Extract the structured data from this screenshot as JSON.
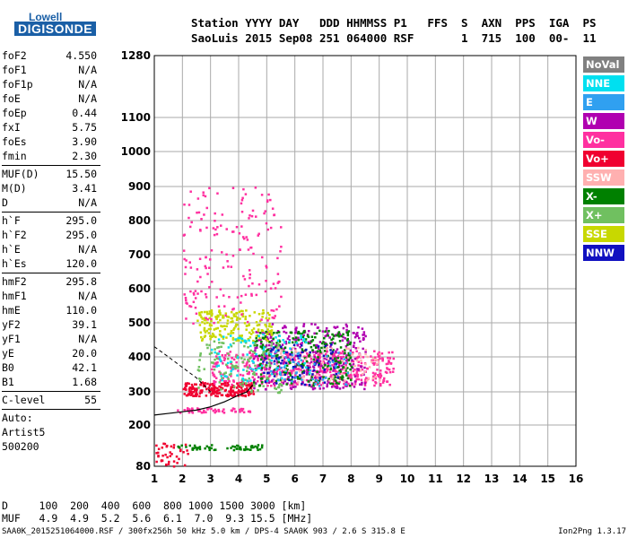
{
  "logo": {
    "line1": "Lowell",
    "line2": "DIGISONDE"
  },
  "header": {
    "row1": "Station YYYY DAY   DDD HHMMSS P1   FFS  S  AXN  PPS  IGA  PS",
    "row2": "SaoLuis 2015 Sep08 251 064000 RSF       1  715  100  00-  11"
  },
  "params": {
    "group1": [
      {
        "k": "foF2",
        "v": "4.550"
      },
      {
        "k": "foF1",
        "v": "N/A"
      },
      {
        "k": "foF1p",
        "v": "N/A"
      },
      {
        "k": "foE",
        "v": "N/A"
      },
      {
        "k": "foEp",
        "v": "0.44"
      },
      {
        "k": "fxI",
        "v": "5.75"
      },
      {
        "k": "foEs",
        "v": "3.90"
      },
      {
        "k": "fmin",
        "v": "2.30"
      }
    ],
    "group2": [
      {
        "k": "MUF(D)",
        "v": "15.50"
      },
      {
        "k": "M(D)",
        "v": "3.41"
      },
      {
        "k": "D",
        "v": "N/A"
      }
    ],
    "group3": [
      {
        "k": "h`F",
        "v": "295.0"
      },
      {
        "k": "h`F2",
        "v": "295.0"
      },
      {
        "k": "h`E",
        "v": "N/A"
      },
      {
        "k": "h`Es",
        "v": "120.0"
      }
    ],
    "group4": [
      {
        "k": "hmF2",
        "v": "295.8"
      },
      {
        "k": "hmF1",
        "v": "N/A"
      },
      {
        "k": "hmE",
        "v": "110.0"
      },
      {
        "k": "yF2",
        "v": "39.1"
      },
      {
        "k": "yF1",
        "v": "N/A"
      },
      {
        "k": "yE",
        "v": "20.0"
      },
      {
        "k": "B0",
        "v": "42.1"
      },
      {
        "k": "B1",
        "v": "1.68"
      }
    ],
    "clevel": {
      "k": "C-level",
      "v": "55"
    },
    "auto": [
      "Auto:",
      "Artist5",
      "500200"
    ]
  },
  "legend": [
    {
      "label": "NoVal",
      "color": "#808080"
    },
    {
      "label": "NNE",
      "color": "#00e0f0"
    },
    {
      "label": "E",
      "color": "#30a0f0"
    },
    {
      "label": "W",
      "color": "#b000b0"
    },
    {
      "label": "Vo-",
      "color": "#ff30a0"
    },
    {
      "label": "Vo+",
      "color": "#f00030"
    },
    {
      "label": "SSW",
      "color": "#ffb0b0"
    },
    {
      "label": "X-",
      "color": "#008000"
    },
    {
      "label": "X+",
      "color": "#70c060"
    },
    {
      "label": "SSE",
      "color": "#c8d800"
    },
    {
      "label": "NNW",
      "color": "#1010c0"
    }
  ],
  "footer": {
    "d_row": "D     100  200  400  600  800 1000 1500 3000 [km]",
    "muf_row": "MUF   4.9  4.9  5.2  5.6  6.1  7.0  9.3 15.5 [MHz]",
    "file": "SAA0K_2015251064000.RSF / 300fx256h 50 kHz 5.0 km / DPS-4 SAA0K 903 / 2.6 S 315.8 E",
    "version": "Ion2Png 1.3.17"
  },
  "chart_data": {
    "type": "scatter",
    "x_ticks": [
      1,
      2,
      3,
      4,
      5,
      6,
      7,
      8,
      9,
      10,
      11,
      12,
      13,
      14,
      15,
      16
    ],
    "y_ticks": [
      80,
      200,
      300,
      400,
      500,
      600,
      700,
      800,
      900,
      1000,
      1100,
      1280
    ],
    "xlim": [
      1,
      16
    ],
    "ylim": [
      80,
      1280
    ],
    "grid": true,
    "legend_position": "right",
    "clusters": [
      {
        "series": "Vo-",
        "x": [
          3.0,
          9.5
        ],
        "y": [
          320,
          420
        ],
        "n": 500
      },
      {
        "series": "Vo+",
        "x": [
          2.0,
          4.5
        ],
        "y": [
          290,
          330
        ],
        "n": 200
      },
      {
        "series": "W",
        "x": [
          4.5,
          8.5
        ],
        "y": [
          310,
          500
        ],
        "n": 350
      },
      {
        "series": "X-",
        "x": [
          4.5,
          8.0
        ],
        "y": [
          320,
          480
        ],
        "n": 250
      },
      {
        "series": "X+",
        "x": [
          2.5,
          5.5
        ],
        "y": [
          300,
          450
        ],
        "n": 120
      },
      {
        "series": "SSE",
        "x": [
          2.5,
          5.2
        ],
        "y": [
          450,
          540
        ],
        "n": 180
      },
      {
        "series": "NNE",
        "x": [
          3.0,
          6.5
        ],
        "y": [
          330,
          470
        ],
        "n": 90
      },
      {
        "series": "SSW",
        "x": [
          5.0,
          9.0
        ],
        "y": [
          330,
          430
        ],
        "n": 90
      },
      {
        "series": "NNW",
        "x": [
          4.8,
          7.5
        ],
        "y": [
          320,
          440
        ],
        "n": 70
      },
      {
        "series": "E",
        "x": [
          5.0,
          8.0
        ],
        "y": [
          320,
          420
        ],
        "n": 50
      },
      {
        "series": "Vo-",
        "x": [
          2.0,
          5.5
        ],
        "y": [
          500,
          900
        ],
        "n": 180
      },
      {
        "series": "X-",
        "x": [
          1.8,
          4.8
        ],
        "y": [
          130,
          145
        ],
        "n": 60
      },
      {
        "series": "Vo-",
        "x": [
          1.8,
          4.5
        ],
        "y": [
          240,
          255
        ],
        "n": 50
      },
      {
        "series": "Vo+",
        "x": [
          1.0,
          2.2
        ],
        "y": [
          80,
          150
        ],
        "n": 40
      }
    ],
    "trace_x": [
      1.0,
      1.5,
      2.0,
      2.5,
      3.0,
      3.5,
      4.0,
      4.3,
      4.5
    ],
    "trace_y": [
      230,
      235,
      240,
      245,
      255,
      270,
      290,
      300,
      320
    ],
    "dashed_x": [
      1.0,
      1.5,
      2.0,
      2.5,
      3.0
    ],
    "dashed_y": [
      430,
      400,
      370,
      340,
      300
    ]
  }
}
